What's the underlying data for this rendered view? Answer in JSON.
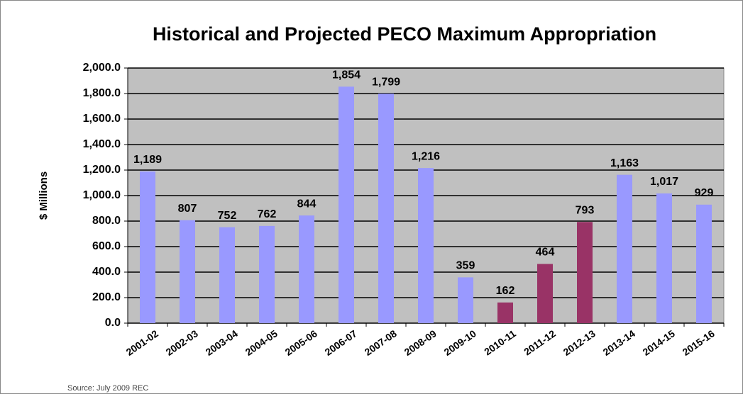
{
  "chart_data": {
    "type": "bar",
    "title": "Historical and Projected PECO Maximum Appropriation",
    "y_label": "$ Millions",
    "source": "Source: July 2009 REC",
    "categories": [
      "2001-02",
      "2002-03",
      "2003-04",
      "2004-05",
      "2005-06",
      "2006-07",
      "2007-08",
      "2008-09",
      "2009-10",
      "2010-11",
      "2011-12",
      "2012-13",
      "2013-14",
      "2014-15",
      "2015-16"
    ],
    "values": [
      1189,
      807,
      752,
      762,
      844,
      1854,
      1799,
      1216,
      359,
      162,
      464,
      793,
      1163,
      1017,
      929
    ],
    "value_labels": [
      "1,189",
      "807",
      "752",
      "762",
      "844",
      "1,854",
      "1,799",
      "1,216",
      "359",
      "162",
      "464",
      "793",
      "1,163",
      "1,017",
      "929"
    ],
    "colors": [
      "#9999ff",
      "#9999ff",
      "#9999ff",
      "#9999ff",
      "#9999ff",
      "#9999ff",
      "#9999ff",
      "#9999ff",
      "#9999ff",
      "#993366",
      "#993366",
      "#993366",
      "#9999ff",
      "#9999ff",
      "#9999ff"
    ],
    "ylim": [
      0,
      2000
    ],
    "yticks": [
      {
        "value": 0,
        "label": "0.0"
      },
      {
        "value": 200,
        "label": "200.0"
      },
      {
        "value": 400,
        "label": "400.0"
      },
      {
        "value": 600,
        "label": "600.0"
      },
      {
        "value": 800,
        "label": "800.0"
      },
      {
        "value": 1000,
        "label": "1,000.0"
      },
      {
        "value": 1200,
        "label": "1,200.0"
      },
      {
        "value": 1400,
        "label": "1,400.0"
      },
      {
        "value": 1600,
        "label": "1,600.0"
      },
      {
        "value": 1800,
        "label": "1,800.0"
      },
      {
        "value": 2000,
        "label": "2,000.0"
      }
    ],
    "grid": true,
    "plot_background": "#c0c0c0"
  }
}
